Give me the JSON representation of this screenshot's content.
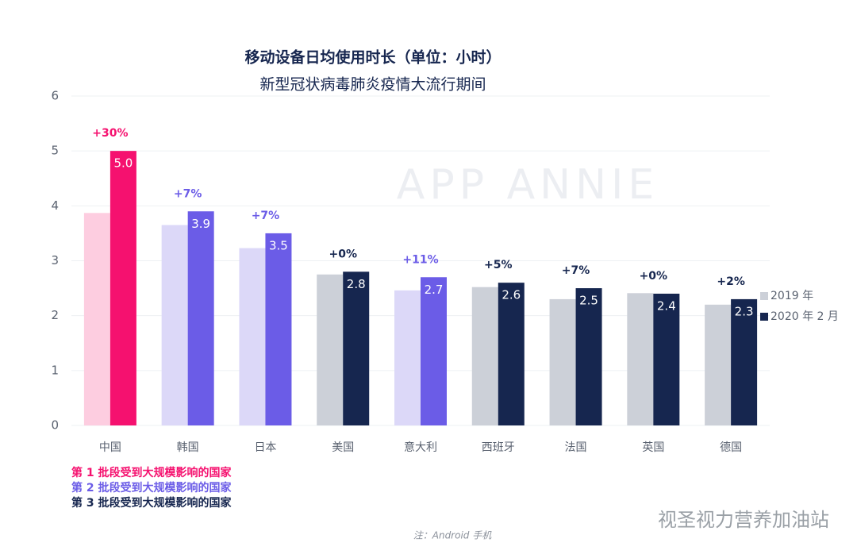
{
  "chart_data": {
    "type": "bar",
    "title": "移动设备日均使用时长（单位：小时）",
    "subtitle": "新型冠状病毒肺炎疫情大流行期间",
    "watermark": "APP ANNIE",
    "categories": [
      "中国",
      "韩国",
      "日本",
      "美国",
      "意大利",
      "西班牙",
      "法国",
      "英国",
      "德国"
    ],
    "series": [
      {
        "name": "2019 年",
        "color": "#ccd0d8",
        "colors": [
          "#fdcde0",
          "#dcd8f8",
          "#dcd8f8",
          "#ccd0d8",
          "#dcd8f8",
          "#ccd0d8",
          "#ccd0d8",
          "#ccd0d8",
          "#ccd0d8"
        ],
        "values": [
          3.87,
          3.65,
          3.23,
          2.75,
          2.46,
          2.52,
          2.3,
          2.41,
          2.2
        ]
      },
      {
        "name": "2020 年 2 月",
        "color": "#16264f",
        "colors": [
          "#f5116f",
          "#6b5ce7",
          "#6b5ce7",
          "#16264f",
          "#6b5ce7",
          "#16264f",
          "#16264f",
          "#16264f",
          "#16264f"
        ],
        "values": [
          5.0,
          3.9,
          3.5,
          2.8,
          2.7,
          2.6,
          2.5,
          2.4,
          2.3
        ],
        "value_labels": [
          "5.0",
          "3.9",
          "3.5",
          "2.8",
          "2.7",
          "2.6",
          "2.5",
          "2.4",
          "2.3"
        ],
        "changes": [
          "+30%",
          "+7%",
          "+7%",
          "+0%",
          "+11%",
          "+5%",
          "+7%",
          "+0%",
          "+2%"
        ]
      }
    ],
    "ylim": [
      0,
      6
    ],
    "yticks": [
      0,
      1,
      2,
      3,
      4,
      5,
      6
    ],
    "grid": true,
    "phases": [
      {
        "label": "第 1 批段受到大规模影响的国家",
        "color": "#f5116f"
      },
      {
        "label": "第 2 批段受到大规模影响的国家",
        "color": "#6b5ce7"
      },
      {
        "label": "第 3 批段受到大规模影响的国家",
        "color": "#16264f"
      }
    ],
    "note": "注：Android 手机",
    "source_watermark": "视圣视力营养加油站"
  }
}
